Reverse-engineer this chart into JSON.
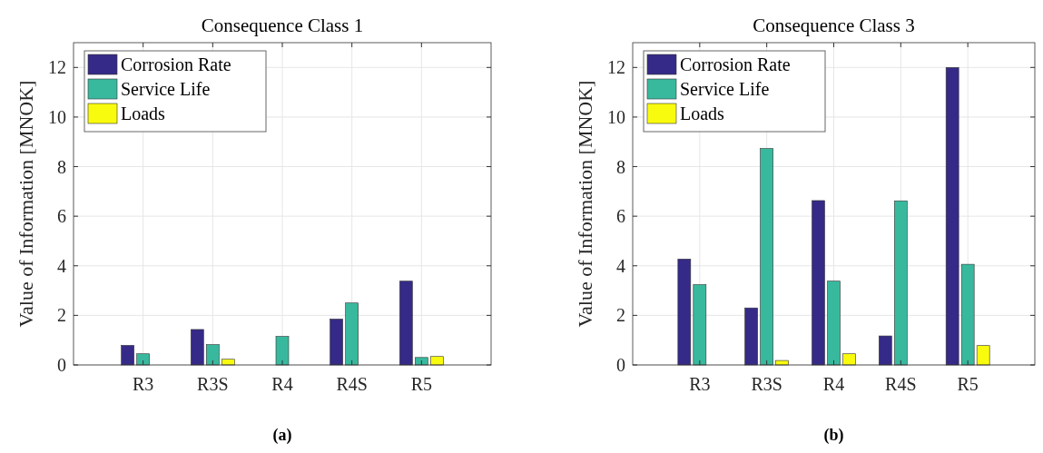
{
  "chart_data": [
    {
      "type": "bar",
      "title": "Consequence Class 1",
      "ylabel": "Value of Information [MNOK]",
      "categories": [
        "R3",
        "R3S",
        "R4",
        "R4S",
        "R5"
      ],
      "series": [
        {
          "name": "Corrosion Rate",
          "color": "#352a87",
          "values": [
            0.79,
            1.43,
            0,
            1.85,
            3.38
          ]
        },
        {
          "name": "Service Life",
          "color": "#38b99e",
          "values": [
            0.45,
            0.82,
            1.15,
            2.5,
            0.3
          ]
        },
        {
          "name": "Loads",
          "color": "#f9fb0e",
          "values": [
            0,
            0.23,
            0,
            0,
            0.34
          ]
        }
      ],
      "ylim": [
        0,
        13
      ],
      "yticks": [
        0,
        2,
        4,
        6,
        8,
        10,
        12
      ],
      "grid": true,
      "legend": "top left",
      "annotations": [
        "(a)"
      ]
    },
    {
      "type": "bar",
      "title": "Consequence Class 3",
      "ylabel": "Value of Information [MNOK]",
      "categories": [
        "R3",
        "R3S",
        "R4",
        "R4S",
        "R5"
      ],
      "series": [
        {
          "name": "Corrosion Rate",
          "color": "#352a87",
          "values": [
            4.27,
            2.3,
            6.63,
            1.17,
            12.0
          ]
        },
        {
          "name": "Service Life",
          "color": "#38b99e",
          "values": [
            3.24,
            8.73,
            3.38,
            6.62,
            4.06
          ]
        },
        {
          "name": "Loads",
          "color": "#f9fb0e",
          "values": [
            0,
            0.18,
            0.45,
            0,
            0.78
          ]
        }
      ],
      "ylim": [
        0,
        13
      ],
      "yticks": [
        0,
        2,
        4,
        6,
        8,
        10,
        12
      ],
      "grid": true,
      "legend": "top left",
      "annotations": [
        "(b)"
      ]
    }
  ]
}
